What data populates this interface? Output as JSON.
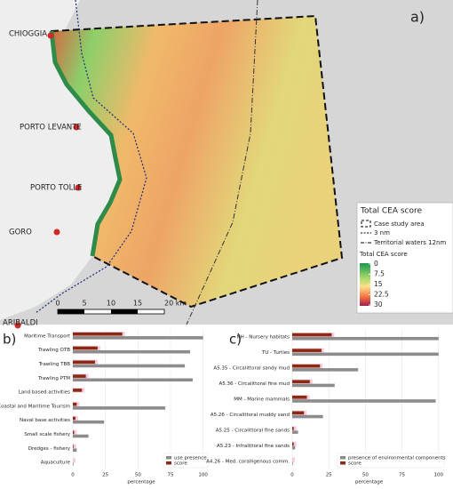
{
  "map": {
    "panel_label": "a)",
    "places": [
      "CHIOGGIA",
      "PORTO LEVANTE",
      "PORTO TOLLE",
      "GORO",
      "ARIBALDI"
    ],
    "scale_bar": [
      "0",
      "5",
      "10",
      "15",
      "20 km"
    ],
    "legend": {
      "title": "Total CEA score",
      "items": [
        "Case study area",
        "3 nm",
        "Territorial waters 12nm"
      ],
      "colorbar_title": "Total CEA score",
      "colorbar_ticks": [
        0,
        7.5,
        15,
        22.5,
        30
      ]
    }
  },
  "chart_data": [
    {
      "type": "hbar",
      "panel_label": "b)",
      "x_label": "percentage",
      "categories": [
        "Maritime Transport",
        "Trawling OTB",
        "Trawling TBB",
        "Trawling PTM",
        "Land based activities",
        "Coastal and Maritime Tourism",
        "Naval base activities",
        "Small scale fishery",
        "Dredges - fishery",
        "Aquaculture"
      ],
      "series": [
        {
          "name": "use presence",
          "color": "#8c8c8c",
          "values": [
            100,
            90,
            86,
            92,
            0,
            71,
            24,
            12,
            3,
            0.5
          ]
        },
        {
          "name": "score",
          "color": "#8b2a12",
          "values": [
            38,
            19,
            17,
            10,
            7,
            3,
            2,
            1,
            0.5,
            0
          ]
        }
      ],
      "xlim": [
        0,
        105
      ],
      "xticks": [
        0,
        25,
        50,
        75,
        100
      ],
      "grid": true,
      "legend": "bottom-right"
    },
    {
      "type": "hbar",
      "panel_label": "c)",
      "x_label": "percentage",
      "categories": [
        "NH - Nursery habitats",
        "TU - Turtles",
        "A5.35 - Circalittoral sandy mud",
        "A5.36 - Circalittoral fine mud",
        "MM - Marine mammals",
        "A5.26 - Circalittoral muddy sand",
        "A5.25 - Circalittoral fine sands",
        "A5.23 - Infralittoral fine sands",
        "A4.26 - Med. coralligenous comm."
      ],
      "series": [
        {
          "name": "presence of environmental components",
          "color": "#8c8c8c",
          "values": [
            100,
            100,
            45,
            29,
            98,
            21,
            4,
            2,
            0.5
          ]
        },
        {
          "name": "score",
          "color": "#8b2a12",
          "values": [
            27,
            20,
            19,
            12,
            10,
            8,
            1,
            1,
            0
          ]
        }
      ],
      "xlim": [
        0,
        105
      ],
      "xticks": [
        0,
        25,
        50,
        75,
        100
      ],
      "grid": true,
      "legend": "bottom-right"
    }
  ]
}
